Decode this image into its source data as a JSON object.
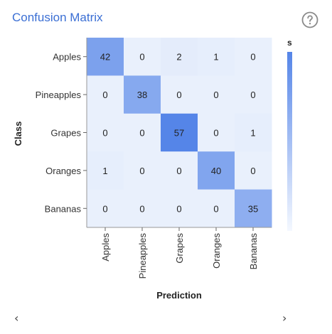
{
  "card": {
    "title": "Confusion Matrix",
    "help_icon": "question-circle-icon",
    "prev_icon": "chevron-left-icon",
    "next_icon": "chevron-right-icon",
    "prev_glyph": "‹",
    "next_glyph": "›"
  },
  "chart_data": {
    "type": "heatmap",
    "title": "Confusion Matrix",
    "xlabel": "Prediction",
    "ylabel": "Class",
    "rows": [
      "Apples",
      "Pineapples",
      "Grapes",
      "Oranges",
      "Bananas"
    ],
    "columns": [
      "Apples",
      "Pineapples",
      "Grapes",
      "Oranges",
      "Bananas"
    ],
    "values": [
      [
        42,
        0,
        2,
        1,
        0
      ],
      [
        0,
        38,
        0,
        0,
        0
      ],
      [
        0,
        0,
        57,
        0,
        1
      ],
      [
        1,
        0,
        0,
        40,
        0
      ],
      [
        0,
        0,
        0,
        0,
        35
      ]
    ],
    "color_range": [
      0,
      57
    ],
    "colors": {
      "low": "#e9f0fc",
      "high": "#5585e8"
    },
    "legend": {
      "label": "s",
      "placement": "right"
    }
  }
}
